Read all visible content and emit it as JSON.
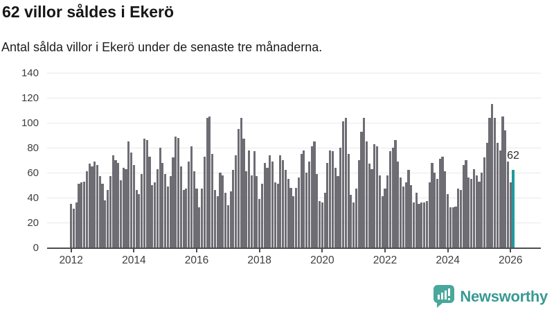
{
  "header": {
    "title": "62 villor såldes i Ekerö",
    "subtitle": "Antal sålda villor i Ekerö under de senaste tre månaderna."
  },
  "chart_data": {
    "type": "bar",
    "title": "62 villor såldes i Ekerö",
    "xlabel": "",
    "ylabel": "",
    "ylim": [
      0,
      140
    ],
    "yticks": [
      0,
      20,
      40,
      60,
      80,
      100,
      120,
      140
    ],
    "year_ticks": [
      2012,
      2014,
      2016,
      2018,
      2020,
      2022,
      2024,
      2026
    ],
    "x_start": "2012-01",
    "x_end": "2026-02",
    "grid": true,
    "legend": "none",
    "values": [
      35,
      31,
      36,
      51,
      52,
      53,
      61,
      67,
      65,
      69,
      66,
      57,
      51,
      38,
      46,
      57,
      74,
      70,
      68,
      54,
      64,
      63,
      85,
      76,
      66,
      46,
      43,
      59,
      87,
      86,
      73,
      50,
      52,
      63,
      80,
      68,
      59,
      49,
      57,
      72,
      89,
      88,
      65,
      46,
      47,
      69,
      81,
      61,
      47,
      32,
      47,
      73,
      104,
      105,
      75,
      46,
      41,
      60,
      58,
      44,
      34,
      45,
      62,
      74,
      95,
      104,
      87,
      61,
      78,
      58,
      77,
      57,
      39,
      51,
      68,
      64,
      74,
      69,
      52,
      51,
      74,
      70,
      62,
      55,
      48,
      41,
      48,
      56,
      75,
      78,
      60,
      69,
      81,
      85,
      59,
      37,
      36,
      44,
      68,
      78,
      77,
      64,
      57,
      80,
      101,
      104,
      75,
      42,
      36,
      47,
      70,
      93,
      104,
      85,
      67,
      63,
      83,
      81,
      58,
      41,
      47,
      58,
      77,
      80,
      86,
      69,
      56,
      49,
      52,
      62,
      50,
      36,
      44,
      35,
      36,
      36,
      37,
      52,
      68,
      60,
      55,
      71,
      73,
      61,
      43,
      32,
      32,
      33,
      47,
      46,
      66,
      70,
      56,
      55,
      63,
      58,
      53,
      60,
      72,
      84,
      104,
      115,
      104,
      84,
      78,
      105,
      94,
      69,
      52,
      62
    ],
    "highlight_last_value": 62,
    "highlight_label": "62",
    "colors": {
      "bar": "#6e6d74",
      "highlight": "#21999b",
      "grid": "#e8e8e8",
      "axis": "#4d4d4d"
    }
  },
  "branding": {
    "name": "Newsworthy",
    "icon": "newsworthy-speech-bubble-chart-icon",
    "text_color": "#389a92",
    "icon_color": "#4aa79b"
  }
}
